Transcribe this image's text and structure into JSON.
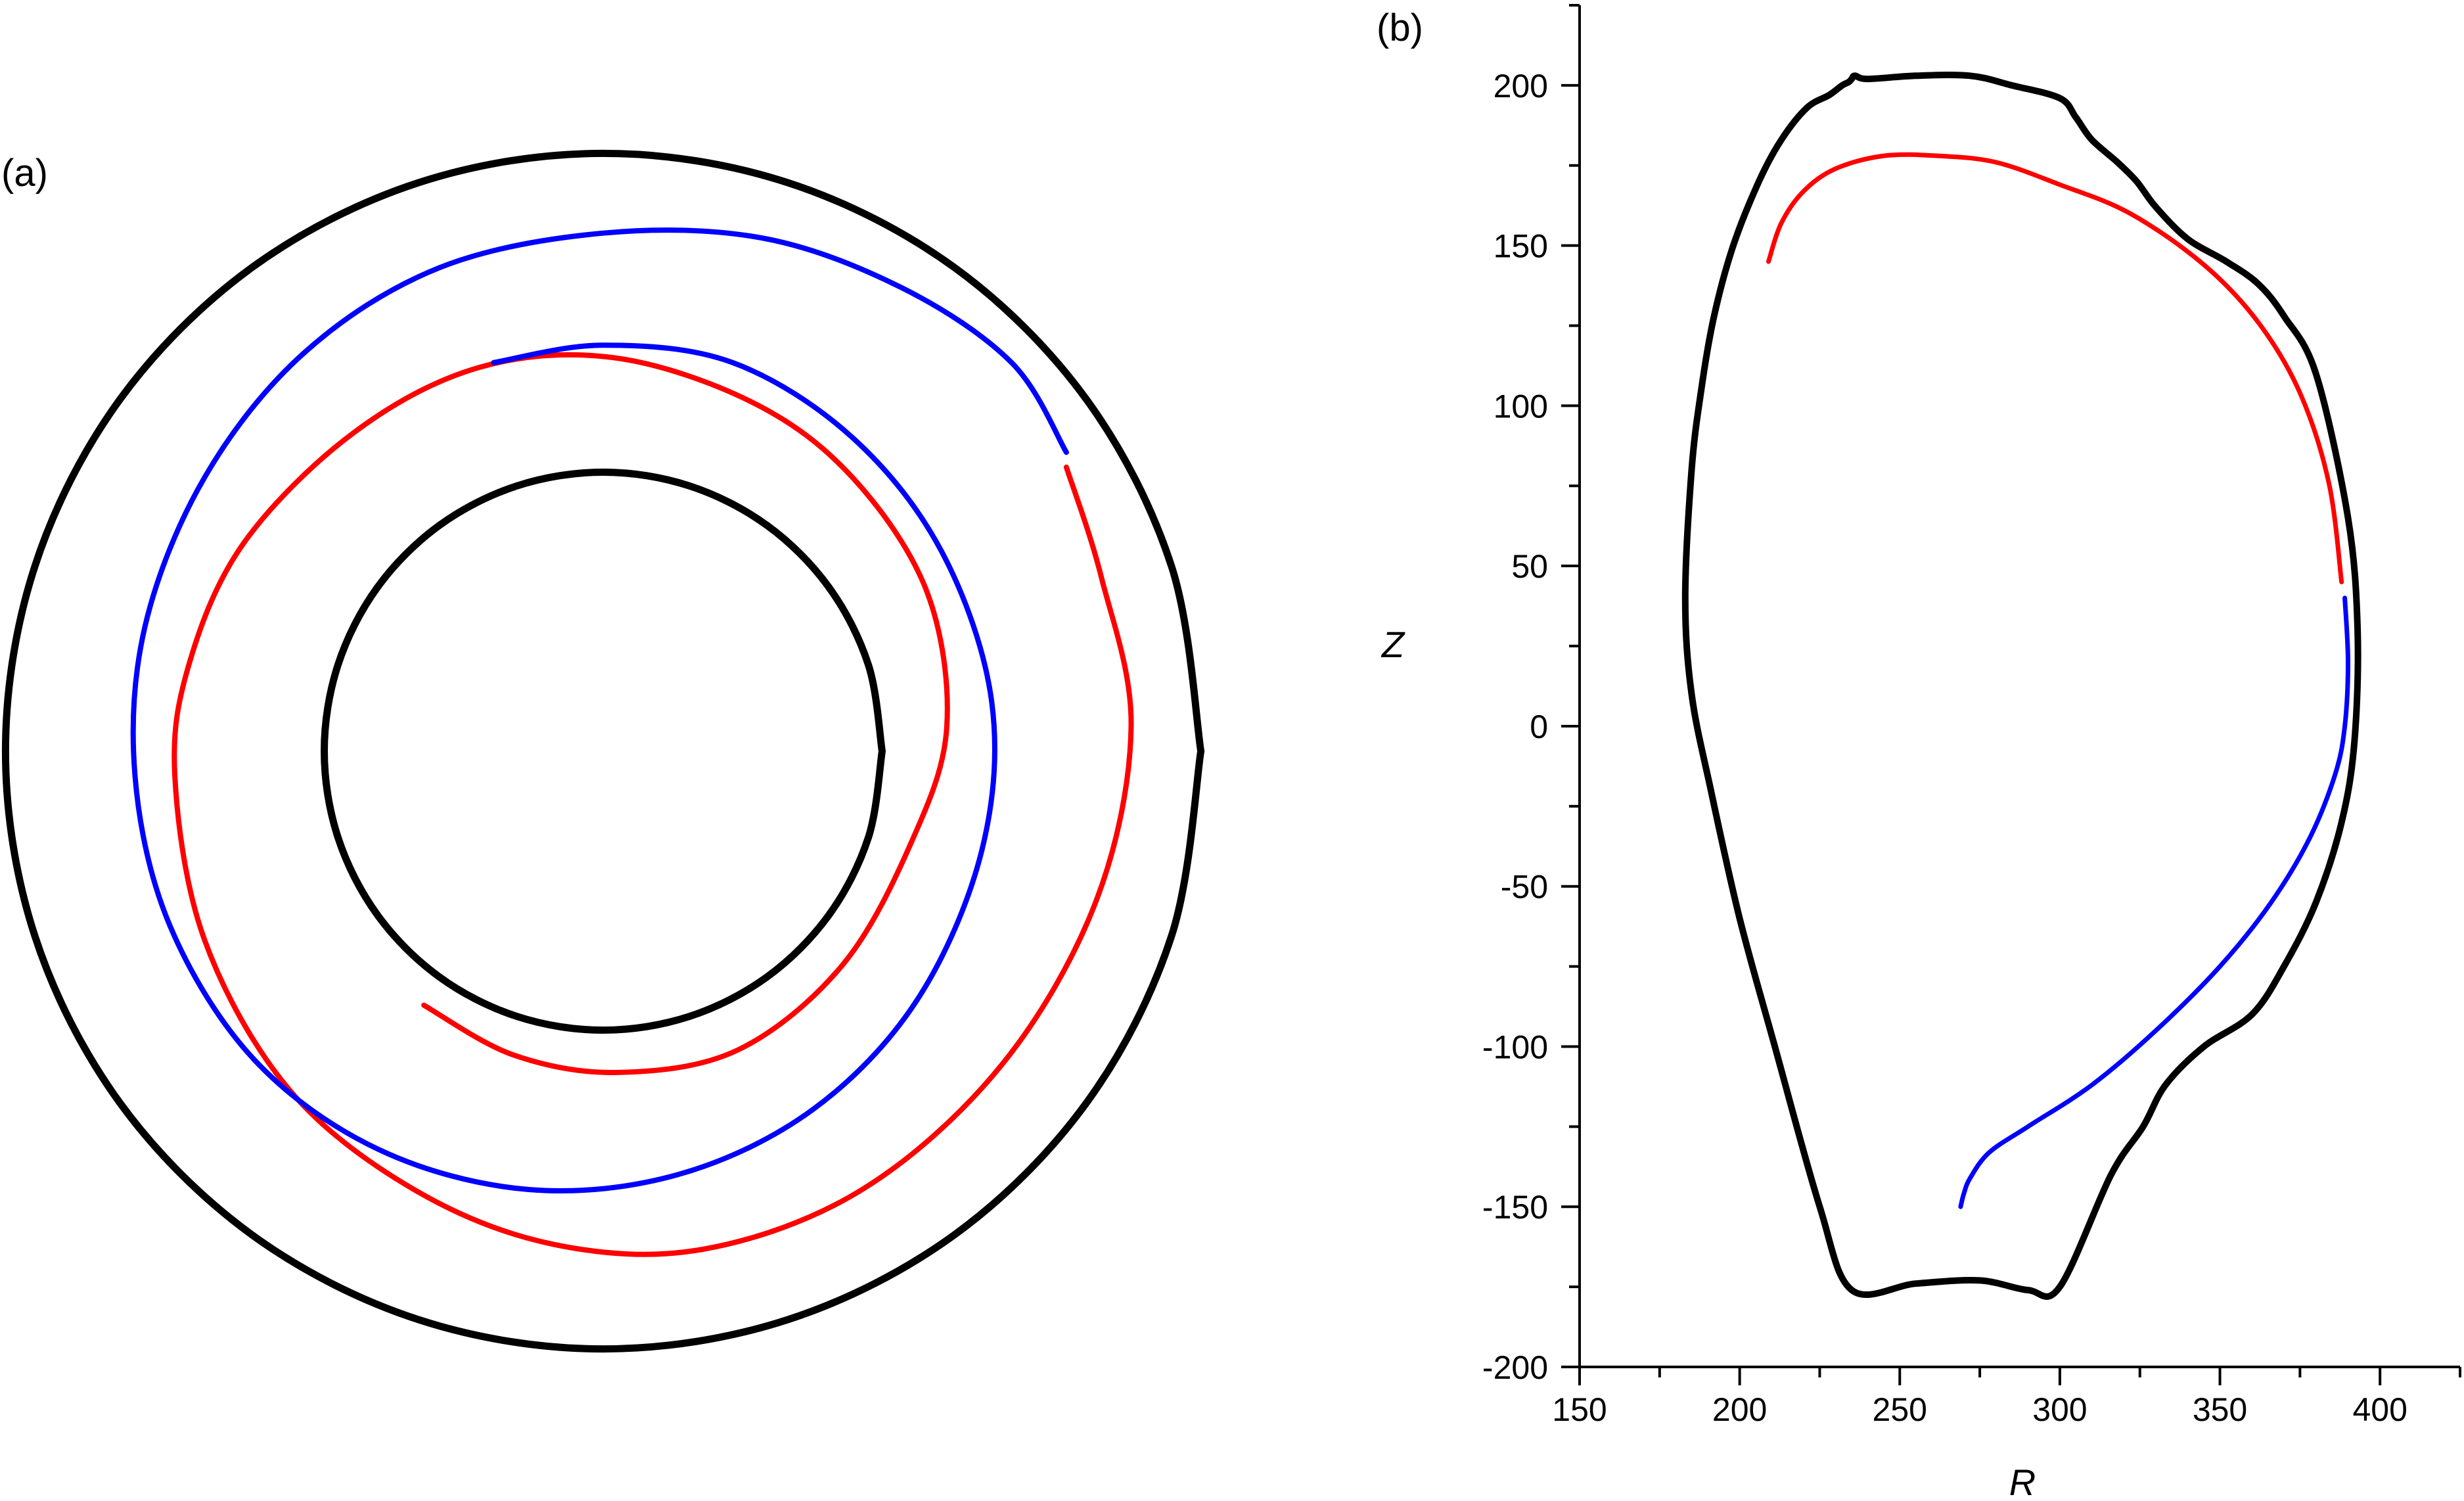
{
  "panel_a": {
    "label": "(a)"
  },
  "panel_b": {
    "label": "(b)"
  },
  "colors": {
    "wall": "#000000",
    "red_orbit": "#ff0000",
    "blue_orbit": "#0000ff"
  },
  "chart_data": [
    {
      "type": "line",
      "panel": "(a)",
      "description_free": true,
      "series": [
        {
          "color": "#000000",
          "points": [
            [
              1.2,
              0
            ],
            [
              1.1412,
              0.3708
            ],
            [
              0.9708,
              0.7053
            ],
            [
              0.7053,
              0.9708
            ],
            [
              0.3708,
              1.1412
            ],
            [
              0,
              1.2
            ],
            [
              -0.3708,
              1.1412
            ],
            [
              -0.7053,
              0.9708
            ],
            [
              -0.9708,
              0.7053
            ],
            [
              -1.1412,
              0.3708
            ],
            [
              -1.2,
              0
            ],
            [
              -1.1412,
              -0.3708
            ],
            [
              -0.9708,
              -0.7053
            ],
            [
              -0.7053,
              -0.9708
            ],
            [
              -0.3708,
              -1.1412
            ],
            [
              0,
              -1.2
            ],
            [
              0.3708,
              -1.1412
            ],
            [
              0.7053,
              -0.9708
            ],
            [
              0.9708,
              -0.7053
            ],
            [
              1.1412,
              -0.3708
            ],
            [
              1.2,
              0
            ]
          ]
        },
        {
          "color": "#000000",
          "points": [
            [
              0.56,
              0
            ],
            [
              0.5326,
              0.173
            ],
            [
              0.453,
              0.3292
            ],
            [
              0.3292,
              0.453
            ],
            [
              0.173,
              0.5326
            ],
            [
              0,
              0.56
            ],
            [
              -0.173,
              0.5326
            ],
            [
              -0.3292,
              0.453
            ],
            [
              -0.453,
              0.3292
            ],
            [
              -0.5326,
              0.173
            ],
            [
              -0.56,
              0
            ],
            [
              -0.5326,
              -0.173
            ],
            [
              -0.453,
              -0.3292
            ],
            [
              -0.3292,
              -0.453
            ],
            [
              -0.173,
              -0.5326
            ],
            [
              0,
              -0.56
            ],
            [
              0.173,
              -0.5326
            ],
            [
              0.3292,
              -0.453
            ],
            [
              0.453,
              -0.3292
            ],
            [
              0.5326,
              -0.173
            ],
            [
              0.56,
              0
            ]
          ]
        },
        {
          "color": "#ff0000",
          "points": [
            [
              -0.36,
              -0.51
            ],
            [
              -0.18,
              -0.61
            ],
            [
              0.03,
              -0.645
            ],
            [
              0.27,
              -0.6
            ],
            [
              0.48,
              -0.43
            ],
            [
              0.62,
              -0.18
            ],
            [
              0.69,
              0.05
            ],
            [
              0.65,
              0.32
            ],
            [
              0.5,
              0.55
            ],
            [
              0.3,
              0.7
            ],
            [
              0.02,
              0.79
            ],
            [
              -0.25,
              0.77
            ],
            [
              -0.5,
              0.64
            ],
            [
              -0.72,
              0.42
            ],
            [
              -0.83,
              0.18
            ],
            [
              -0.86,
              -0.05
            ],
            [
              -0.8,
              -0.38
            ],
            [
              -0.63,
              -0.68
            ],
            [
              -0.38,
              -0.88
            ],
            [
              -0.1,
              -0.99
            ],
            [
              0.2,
              -1.0
            ],
            [
              0.52,
              -0.88
            ],
            [
              0.8,
              -0.63
            ],
            [
              0.99,
              -0.3
            ],
            [
              1.06,
              0.05
            ],
            [
              1.0,
              0.35
            ],
            [
              0.93,
              0.57
            ]
          ]
        },
        {
          "color": "#0000ff",
          "points": [
            [
              -0.22,
              0.78
            ],
            [
              0.0,
              0.815
            ],
            [
              0.26,
              0.78
            ],
            [
              0.5,
              0.63
            ],
            [
              0.68,
              0.4
            ],
            [
              0.78,
              0.1
            ],
            [
              0.76,
              -0.2
            ],
            [
              0.63,
              -0.5
            ],
            [
              0.42,
              -0.72
            ],
            [
              0.15,
              -0.85
            ],
            [
              -0.15,
              -0.88
            ],
            [
              -0.45,
              -0.8
            ],
            [
              -0.7,
              -0.62
            ],
            [
              -0.87,
              -0.35
            ],
            [
              -0.94,
              -0.05
            ],
            [
              -0.92,
              0.25
            ],
            [
              -0.8,
              0.55
            ],
            [
              -0.6,
              0.8
            ],
            [
              -0.33,
              0.97
            ],
            [
              0.0,
              1.04
            ],
            [
              0.32,
              1.03
            ],
            [
              0.6,
              0.93
            ],
            [
              0.82,
              0.78
            ],
            [
              0.93,
              0.6
            ]
          ]
        }
      ]
    },
    {
      "type": "line",
      "panel": "(b)",
      "xlabel": "R",
      "ylabel": "Z",
      "xlim": [
        150,
        425
      ],
      "ylim": [
        -200,
        225
      ],
      "xticks": [
        150,
        200,
        250,
        300,
        350,
        400
      ],
      "yticks": [
        -200,
        -150,
        -100,
        -50,
        0,
        50,
        100,
        150,
        200
      ],
      "series": [
        {
          "color": "#000000",
          "x": [
            183,
            185,
            188,
            192,
            198,
            206,
            213,
            221,
            228,
            232,
            234,
            235,
            236,
            240,
            255,
            272,
            285,
            300,
            305,
            310,
            318,
            324,
            330,
            340,
            352,
            362,
            370,
            380,
            390,
            393,
            392,
            388,
            380,
            370,
            360,
            345,
            333,
            326,
            316,
            300,
            290,
            275,
            255,
            235,
            225,
            211,
            200,
            191,
            185,
            183
          ],
          "y": [
            40,
            80,
            105,
            128,
            150,
            170,
            183,
            193,
            197,
            200,
            201,
            202,
            203,
            202,
            203,
            203,
            200,
            196,
            190,
            183,
            176,
            170,
            162,
            152,
            145,
            138,
            128,
            110,
            65,
            30,
            -5,
            -30,
            -55,
            -75,
            -90,
            -100,
            -112,
            -125,
            -140,
            -175,
            -176,
            -173,
            -174,
            -176,
            -150,
            -100,
            -60,
            -20,
            10,
            40
          ]
        },
        {
          "color": "#ff0000",
          "x": [
            209,
            213,
            220,
            230,
            245,
            262,
            280,
            300,
            322,
            345,
            362,
            375,
            384,
            388
          ],
          "y": [
            145,
            157,
            167,
            174,
            178,
            178,
            176,
            169,
            160,
            144,
            126,
            104,
            76,
            45
          ]
        },
        {
          "color": "#0000ff",
          "x": [
            389,
            390,
            389,
            386,
            378,
            366,
            350,
            330,
            310,
            290,
            278,
            272,
            270,
            269
          ],
          "y": [
            40,
            20,
            0,
            -15,
            -35,
            -55,
            -75,
            -95,
            -112,
            -125,
            -133,
            -141,
            -146,
            -150
          ]
        }
      ]
    }
  ]
}
